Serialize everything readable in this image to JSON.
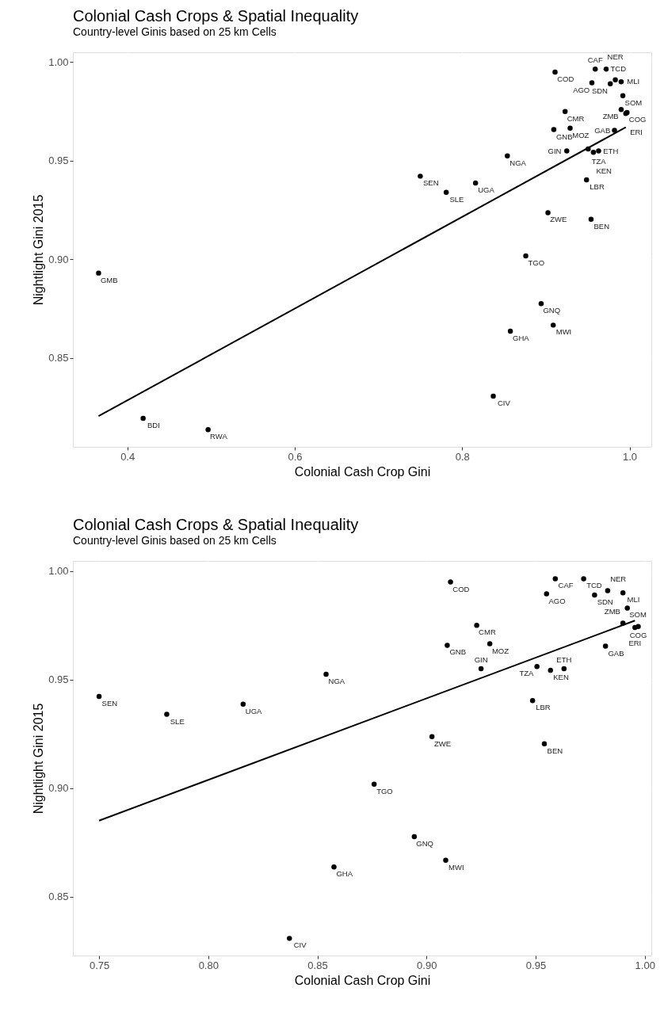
{
  "chart_data": [
    {
      "type": "scatter",
      "title": "Colonial Cash Crops & Spatial Inequality",
      "subtitle": "Country-level Ginis based on 25 km Cells",
      "xlabel": "Colonial Cash Crop Gini",
      "ylabel": "Nightlight Gini 2015",
      "xlim": [
        0.335,
        1.026
      ],
      "ylim": [
        0.805,
        1.005
      ],
      "xticks": [
        0.4,
        0.6,
        0.8,
        {
          "value": 1,
          "label": "1.0"
        }
      ],
      "yticks": [
        {
          "value": 0.85,
          "label": "0.85"
        },
        {
          "value": 0.9,
          "label": "0.90"
        },
        {
          "value": 0.95,
          "label": "0.95"
        },
        {
          "value": 1,
          "label": "1.00"
        }
      ],
      "grid": true,
      "series": [
        {
          "marker": "circle",
          "color": "#000000",
          "x": [
            0.911,
            0.959,
            0.972,
            0.955,
            0.977,
            0.983,
            0.99,
            0.992,
            0.99,
            0.997,
            0.9955,
            0.923,
            0.9095,
            0.929,
            0.925,
            0.9506,
            0.9568,
            0.963,
            0.982,
            0.854,
            0.75,
            0.781,
            0.816,
            0.9486,
            0.954,
            0.9025,
            0.876,
            0.8944,
            0.9088,
            0.8576,
            0.8372,
            0.3657,
            0.4189,
            0.4965
          ],
          "values": [
            0.995,
            0.9965,
            0.9965,
            0.9895,
            0.989,
            0.991,
            0.99,
            0.983,
            0.976,
            0.9745,
            0.974,
            0.975,
            0.9658,
            0.9665,
            0.955,
            0.956,
            0.9543,
            0.955,
            0.9654,
            0.9525,
            0.9422,
            0.934,
            0.9387,
            0.9403,
            0.9204,
            0.9237,
            0.9018,
            0.8776,
            0.8667,
            0.8636,
            0.8307,
            0.8931,
            0.8195,
            0.8137
          ]
        },
        {
          "type": "line",
          "color": "#000000",
          "line_style": "solid",
          "x": [
            0.3657,
            0.9955
          ],
          "values": [
            0.8206,
            0.967
          ]
        }
      ],
      "annotations": [
        {
          "text": "COD",
          "x": 0.911,
          "y": 0.995
        },
        {
          "text": "CAF",
          "x": 0.959,
          "y": 0.9965
        },
        {
          "text": "TCD",
          "x": 0.972,
          "y": 0.9965
        },
        {
          "text": "AGO",
          "x": 0.955,
          "y": 0.9895
        },
        {
          "text": "SDN",
          "x": 0.977,
          "y": 0.989
        },
        {
          "text": "NER",
          "x": 0.983,
          "y": 0.991
        },
        {
          "text": "MLI",
          "x": 0.99,
          "y": 0.99
        },
        {
          "text": "SOM",
          "x": 0.992,
          "y": 0.983
        },
        {
          "text": "ZMB",
          "x": 0.99,
          "y": 0.976
        },
        {
          "text": "COG",
          "x": 0.997,
          "y": 0.9745
        },
        {
          "text": "ERI",
          "x": 0.9955,
          "y": 0.974
        },
        {
          "text": "CMR",
          "x": 0.923,
          "y": 0.975
        },
        {
          "text": "GNB",
          "x": 0.9095,
          "y": 0.9658
        },
        {
          "text": "MOZ",
          "x": 0.929,
          "y": 0.9665
        },
        {
          "text": "GIN",
          "x": 0.925,
          "y": 0.955
        },
        {
          "text": "TZA",
          "x": 0.9506,
          "y": 0.956
        },
        {
          "text": "KEN",
          "x": 0.9568,
          "y": 0.9543
        },
        {
          "text": "ETH",
          "x": 0.963,
          "y": 0.955
        },
        {
          "text": "GAB",
          "x": 0.982,
          "y": 0.9654
        },
        {
          "text": "NGA",
          "x": 0.854,
          "y": 0.9525
        },
        {
          "text": "SEN",
          "x": 0.75,
          "y": 0.9422
        },
        {
          "text": "SLE",
          "x": 0.781,
          "y": 0.934
        },
        {
          "text": "UGA",
          "x": 0.816,
          "y": 0.9387
        },
        {
          "text": "LBR",
          "x": 0.9486,
          "y": 0.9403
        },
        {
          "text": "BEN",
          "x": 0.954,
          "y": 0.9204
        },
        {
          "text": "ZWE",
          "x": 0.9025,
          "y": 0.9237
        },
        {
          "text": "TGO",
          "x": 0.876,
          "y": 0.9018
        },
        {
          "text": "GNQ",
          "x": 0.8944,
          "y": 0.8776
        },
        {
          "text": "MWI",
          "x": 0.9088,
          "y": 0.8667
        },
        {
          "text": "GHA",
          "x": 0.8576,
          "y": 0.8636
        },
        {
          "text": "CIV",
          "x": 0.8372,
          "y": 0.8307
        },
        {
          "text": "GMB",
          "x": 0.3657,
          "y": 0.8931
        },
        {
          "text": "BDI",
          "x": 0.4189,
          "y": 0.8195
        },
        {
          "text": "RWA",
          "x": 0.4965,
          "y": 0.8137
        }
      ]
    },
    {
      "type": "scatter",
      "title": "Colonial Cash Crops & Spatial Inequality",
      "subtitle": "Country-level Ginis based on 25 km Cells",
      "xlabel": "Colonial Cash Crop Gini",
      "ylabel": "Nightlight Gini 2015",
      "xlim": [
        0.738,
        1.003
      ],
      "ylim": [
        0.8228,
        1.0047
      ],
      "xticks": [
        {
          "value": 0.75,
          "label": "0.75"
        },
        {
          "value": 0.8,
          "label": "0.80"
        },
        {
          "value": 0.85,
          "label": "0.85"
        },
        {
          "value": 0.9,
          "label": "0.90"
        },
        {
          "value": 0.95,
          "label": "0.95"
        },
        {
          "value": 1,
          "label": "1.00"
        }
      ],
      "yticks": [
        {
          "value": 0.85,
          "label": "0.85"
        },
        {
          "value": 0.9,
          "label": "0.90"
        },
        {
          "value": 0.95,
          "label": "0.95"
        },
        {
          "value": 1,
          "label": "1.00"
        }
      ],
      "grid": true,
      "series": [
        {
          "marker": "circle",
          "color": "#000000",
          "x": [
            0.911,
            0.959,
            0.972,
            0.955,
            0.977,
            0.983,
            0.99,
            0.992,
            0.99,
            0.997,
            0.9955,
            0.923,
            0.9095,
            0.929,
            0.925,
            0.9506,
            0.9568,
            0.963,
            0.982,
            0.854,
            0.75,
            0.781,
            0.816,
            0.9486,
            0.954,
            0.9025,
            0.876,
            0.8944,
            0.9088,
            0.8576,
            0.8372
          ],
          "values": [
            0.995,
            0.9965,
            0.9965,
            0.9895,
            0.989,
            0.991,
            0.99,
            0.983,
            0.976,
            0.9745,
            0.974,
            0.975,
            0.9658,
            0.9665,
            0.955,
            0.956,
            0.9543,
            0.955,
            0.9654,
            0.9525,
            0.9422,
            0.934,
            0.9387,
            0.9403,
            0.9204,
            0.9237,
            0.9018,
            0.8776,
            0.8667,
            0.8636,
            0.8307
          ]
        },
        {
          "type": "line",
          "color": "#000000",
          "line_style": "solid",
          "x": [
            0.75,
            0.9955
          ],
          "values": [
            0.885,
            0.9772
          ]
        }
      ],
      "annotations": [
        {
          "text": "COD",
          "x": 0.911,
          "y": 0.995
        },
        {
          "text": "CAF",
          "x": 0.959,
          "y": 0.9965
        },
        {
          "text": "TCD",
          "x": 0.972,
          "y": 0.9965
        },
        {
          "text": "AGO",
          "x": 0.955,
          "y": 0.9895
        },
        {
          "text": "SDN",
          "x": 0.977,
          "y": 0.989
        },
        {
          "text": "NER",
          "x": 0.983,
          "y": 0.991
        },
        {
          "text": "MLI",
          "x": 0.99,
          "y": 0.99
        },
        {
          "text": "SOM",
          "x": 0.992,
          "y": 0.983
        },
        {
          "text": "ZMB",
          "x": 0.99,
          "y": 0.976
        },
        {
          "text": "COG",
          "x": 0.997,
          "y": 0.9745
        },
        {
          "text": "ERI",
          "x": 0.9955,
          "y": 0.974
        },
        {
          "text": "CMR",
          "x": 0.923,
          "y": 0.975
        },
        {
          "text": "GNB",
          "x": 0.9095,
          "y": 0.9658
        },
        {
          "text": "MOZ",
          "x": 0.929,
          "y": 0.9665
        },
        {
          "text": "GIN",
          "x": 0.925,
          "y": 0.955
        },
        {
          "text": "TZA",
          "x": 0.9506,
          "y": 0.956
        },
        {
          "text": "KEN",
          "x": 0.9568,
          "y": 0.9543
        },
        {
          "text": "ETH",
          "x": 0.963,
          "y": 0.955
        },
        {
          "text": "GAB",
          "x": 0.982,
          "y": 0.9654
        },
        {
          "text": "NGA",
          "x": 0.854,
          "y": 0.9525
        },
        {
          "text": "SEN",
          "x": 0.75,
          "y": 0.9422
        },
        {
          "text": "SLE",
          "x": 0.781,
          "y": 0.934
        },
        {
          "text": "UGA",
          "x": 0.816,
          "y": 0.9387
        },
        {
          "text": "LBR",
          "x": 0.9486,
          "y": 0.9403
        },
        {
          "text": "BEN",
          "x": 0.954,
          "y": 0.9204
        },
        {
          "text": "ZWE",
          "x": 0.9025,
          "y": 0.9237
        },
        {
          "text": "TGO",
          "x": 0.876,
          "y": 0.9018
        },
        {
          "text": "GNQ",
          "x": 0.8944,
          "y": 0.8776
        },
        {
          "text": "MWI",
          "x": 0.9088,
          "y": 0.8667
        },
        {
          "text": "GHA",
          "x": 0.8576,
          "y": 0.8636
        },
        {
          "text": "CIV",
          "x": 0.8372,
          "y": 0.8307
        }
      ]
    }
  ]
}
